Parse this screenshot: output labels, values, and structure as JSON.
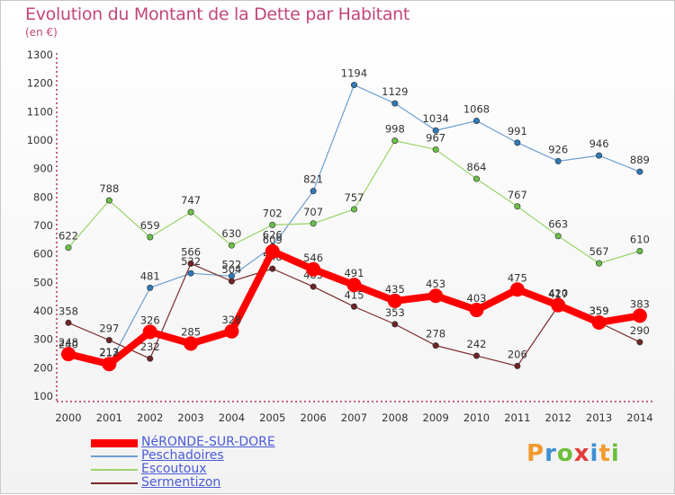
{
  "title": "Evolution du Montant de la Dette par Habitant",
  "subtitle": "(en €)",
  "logo": "Proxiti",
  "chart_data": {
    "type": "line",
    "title": "Evolution du Montant de la Dette par Habitant",
    "subtitle": "(en €)",
    "xlabel": "",
    "ylabel": "",
    "categories": [
      "2000",
      "2001",
      "2002",
      "2003",
      "2004",
      "2005",
      "2006",
      "2007",
      "2008",
      "2009",
      "2010",
      "2011",
      "2012",
      "2013",
      "2014"
    ],
    "ylim": [
      100,
      1300
    ],
    "yticks": [
      100,
      200,
      300,
      400,
      500,
      600,
      700,
      800,
      900,
      1000,
      1100,
      1200,
      1300
    ],
    "grid": false,
    "legend_position": "bottom-left",
    "series": [
      {
        "name": "Peschadoires",
        "color": "#6b9fd1",
        "point": "#2f7ab8",
        "width": 1.2,
        "values": [
          240,
          212,
          481,
          532,
          522,
          626,
          821,
          1194,
          1129,
          1034,
          1068,
          991,
          926,
          946,
          889
        ]
      },
      {
        "name": "Escoutoux",
        "color": "#9ad46a",
        "point": "#6cc04a",
        "width": 1.2,
        "values": [
          622,
          788,
          659,
          747,
          630,
          702,
          707,
          757,
          998,
          967,
          864,
          767,
          663,
          567,
          610
        ]
      },
      {
        "name": "Sermentizon",
        "color": "#7a2a2a",
        "point": "#6e2525",
        "width": 1.2,
        "values": [
          358,
          297,
          232,
          566,
          504,
          548,
          485,
          415,
          353,
          278,
          242,
          206,
          417,
          359,
          290
        ]
      },
      {
        "name": "NéRONDE-SUR-DORE",
        "color": "#ff0000",
        "point": "#ff0000",
        "width": 8,
        "values": [
          248,
          213,
          326,
          285,
          328,
          609,
          546,
          491,
          435,
          453,
          403,
          475,
          420,
          359,
          383
        ]
      }
    ],
    "legend_order": [
      "NéRONDE-SUR-DORE",
      "Peschadoires",
      "Escoutoux",
      "Sermentizon"
    ]
  }
}
